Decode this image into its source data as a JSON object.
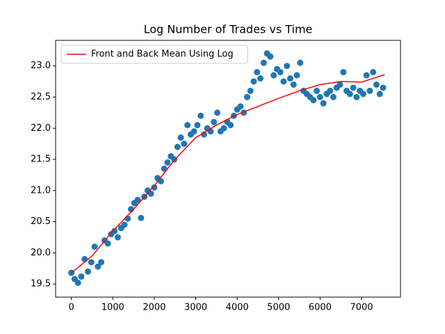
{
  "chart_data": {
    "type": "scatter",
    "title": "Log Number of Trades vs Time",
    "xlim": [
      -380,
      7940
    ],
    "ylim": [
      19.29,
      23.41
    ],
    "xticks": [
      0,
      1000,
      2000,
      3000,
      4000,
      5000,
      6000,
      7000
    ],
    "yticks": [
      19.5,
      {
        "value": 20,
        "label": "20.0"
      },
      20.5,
      {
        "value": 21,
        "label": "21.0"
      },
      21.5,
      {
        "value": 22,
        "label": "22.0"
      },
      22.5,
      {
        "value": 23,
        "label": "23.0"
      }
    ],
    "legend": "upper left",
    "series": [
      {
        "type": "scatter",
        "color": "#1f77b4",
        "x": [
          0,
          80,
          160,
          240,
          320,
          400,
          480,
          560,
          640,
          720,
          800,
          880,
          960,
          1040,
          1120,
          1200,
          1280,
          1360,
          1440,
          1520,
          1600,
          1680,
          1760,
          1840,
          1920,
          2000,
          2080,
          2160,
          2240,
          2320,
          2400,
          2480,
          2560,
          2640,
          2720,
          2800,
          2880,
          2960,
          3040,
          3120,
          3200,
          3280,
          3360,
          3440,
          3520,
          3600,
          3680,
          3760,
          3840,
          3920,
          4000,
          4080,
          4160,
          4240,
          4320,
          4400,
          4480,
          4560,
          4640,
          4720,
          4800,
          4880,
          4960,
          5040,
          5120,
          5200,
          5280,
          5360,
          5440,
          5520,
          5600,
          5680,
          5760,
          5840,
          5920,
          6000,
          6080,
          6160,
          6240,
          6320,
          6400,
          6480,
          6560,
          6640,
          6720,
          6800,
          6880,
          6960,
          7040,
          7120,
          7200,
          7280,
          7360,
          7440,
          7520
        ],
        "values": [
          19.68,
          19.58,
          19.52,
          19.62,
          19.9,
          19.7,
          19.85,
          20.1,
          19.78,
          19.85,
          20.2,
          20.15,
          20.3,
          20.35,
          20.25,
          20.4,
          20.45,
          20.55,
          20.7,
          20.8,
          20.85,
          20.56,
          20.9,
          21.0,
          20.95,
          21.05,
          21.2,
          21.15,
          21.35,
          21.45,
          21.55,
          21.5,
          21.7,
          21.85,
          21.75,
          22.05,
          21.9,
          21.95,
          22.05,
          22.2,
          21.9,
          22.0,
          21.95,
          22.1,
          22.25,
          21.95,
          22.0,
          22.1,
          22.05,
          22.2,
          22.3,
          22.35,
          22.25,
          22.5,
          22.6,
          22.75,
          22.9,
          22.8,
          23.05,
          23.2,
          23.15,
          22.85,
          22.95,
          22.9,
          22.75,
          23.0,
          22.8,
          22.7,
          22.85,
          23.05,
          22.6,
          22.55,
          22.5,
          22.45,
          22.6,
          22.5,
          22.4,
          22.55,
          22.6,
          22.5,
          22.65,
          22.7,
          22.9,
          22.6,
          22.55,
          22.65,
          22.5,
          22.6,
          22.55,
          22.85,
          22.6,
          22.9,
          22.7,
          22.55,
          22.65
        ]
      },
      {
        "type": "line",
        "name": "Front and Back Mean Using Log",
        "color": "red",
        "x": [
          0,
          500,
          1000,
          1500,
          2000,
          2500,
          3000,
          3500,
          4000,
          4500,
          5000,
          5500,
          6000,
          6500,
          7000,
          7560
        ],
        "values": [
          19.68,
          19.95,
          20.35,
          20.7,
          21.08,
          21.5,
          21.85,
          22.05,
          22.22,
          22.35,
          22.48,
          22.6,
          22.7,
          22.75,
          22.74,
          22.86
        ]
      }
    ]
  }
}
